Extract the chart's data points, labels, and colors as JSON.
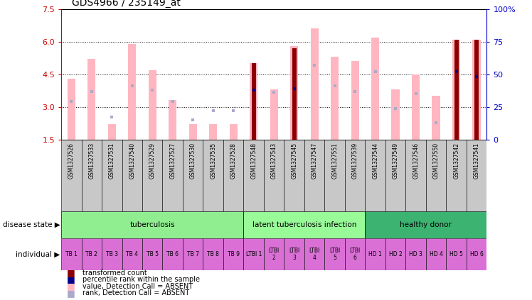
{
  "title": "GDS4966 / 235149_at",
  "samples": [
    "GSM1327526",
    "GSM1327533",
    "GSM1327531",
    "GSM1327540",
    "GSM1327529",
    "GSM1327527",
    "GSM1327530",
    "GSM1327535",
    "GSM1327528",
    "GSM1327548",
    "GSM1327543",
    "GSM1327545",
    "GSM1327547",
    "GSM1327551",
    "GSM1327539",
    "GSM1327544",
    "GSM1327549",
    "GSM1327546",
    "GSM1327550",
    "GSM1327542",
    "GSM1327541"
  ],
  "pink_bar_heights": [
    4.3,
    5.2,
    2.2,
    5.9,
    4.7,
    3.3,
    2.2,
    2.2,
    2.2,
    5.0,
    3.8,
    5.8,
    6.6,
    5.3,
    5.1,
    6.2,
    3.8,
    4.5,
    3.5,
    6.1,
    6.1
  ],
  "red_bar_heights": [
    0,
    0,
    0,
    0,
    0,
    0,
    0,
    0,
    0,
    5.0,
    0,
    5.7,
    0,
    0,
    0,
    0,
    0,
    0,
    0,
    6.1,
    6.1
  ],
  "blue_rank_pct": [
    0,
    0,
    0,
    0,
    0,
    0,
    0,
    0,
    0,
    38,
    0,
    39,
    0,
    0,
    0,
    0,
    0,
    0,
    0,
    52,
    48
  ],
  "lavender_rank_pct": [
    29,
    37,
    17,
    41,
    38,
    29,
    15,
    22,
    22,
    0,
    36,
    0,
    57,
    41,
    37,
    52,
    24,
    35,
    13,
    0,
    0
  ],
  "ylim_left": [
    1.5,
    7.5
  ],
  "ylim_right": [
    0,
    100
  ],
  "yticks_left": [
    1.5,
    3.0,
    4.5,
    6.0,
    7.5
  ],
  "yticks_right": [
    0,
    25,
    50,
    75,
    100
  ],
  "disease_groups": [
    {
      "label": "tuberculosis",
      "start": 0,
      "end": 9,
      "color": "#90EE90"
    },
    {
      "label": "latent tuberculosis infection",
      "start": 9,
      "end": 15,
      "color": "#98FB98"
    },
    {
      "label": "healthy donor",
      "start": 15,
      "end": 21,
      "color": "#3CB371"
    }
  ],
  "individual_labels": [
    "TB 1",
    "TB 2",
    "TB 3",
    "TB 4",
    "TB 5",
    "TB 6",
    "TB 7",
    "TB 8",
    "TB 9",
    "LTBI 1",
    "LTBI\n2",
    "LTBI\n3",
    "LTBI\n4",
    "LTBI\n5",
    "LTBI\n6",
    "HD 1",
    "HD 2",
    "HD 3",
    "HD 4",
    "HD 5",
    "HD 6"
  ],
  "individual_colors": [
    "#DA70D6",
    "#DA70D6",
    "#DA70D6",
    "#DA70D6",
    "#DA70D6",
    "#DA70D6",
    "#DA70D6",
    "#DA70D6",
    "#DA70D6",
    "#DA70D6",
    "#DA70D6",
    "#DA70D6",
    "#DA70D6",
    "#DA70D6",
    "#DA70D6",
    "#DA70D6",
    "#DA70D6",
    "#DA70D6",
    "#DA70D6",
    "#DA70D6",
    "#DA70D6"
  ],
  "bar_width": 0.4,
  "pink_color": "#FFB6C1",
  "red_color": "#8B0000",
  "blue_color": "#00008B",
  "lavender_color": "#AAAACC",
  "left_axis_color": "#CC0000",
  "right_axis_color": "#0000CC",
  "sample_box_color": "#C8C8C8",
  "grid_color": "#000000"
}
